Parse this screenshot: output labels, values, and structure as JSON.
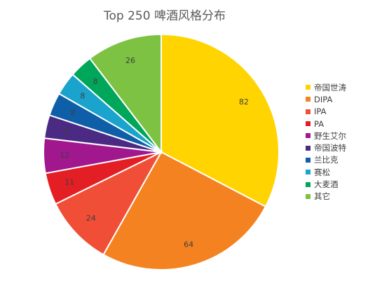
{
  "chart_data": {
    "type": "pie",
    "title": "Top 250 啤酒风格分布",
    "legend_position": "right",
    "slices": [
      {
        "label": "帝国世涛",
        "value": 82,
        "color": "#FFD400"
      },
      {
        "label": "DIPA",
        "value": 64,
        "color": "#F58220"
      },
      {
        "label": "IPA",
        "value": 24,
        "color": "#F04E37"
      },
      {
        "label": "PA",
        "value": 11,
        "color": "#E31E24"
      },
      {
        "label": "野生艾尔",
        "value": 12,
        "color": "#A0178E"
      },
      {
        "label": "帝国波特",
        "value": 8,
        "color": "#4A2A83"
      },
      {
        "label": "兰比克",
        "value": 8,
        "color": "#0E5EA8"
      },
      {
        "label": "赛松",
        "value": 8,
        "color": "#1AA3CC"
      },
      {
        "label": "大麦酒",
        "value": 8,
        "color": "#00A65A"
      },
      {
        "label": "其它",
        "value": 26,
        "color": "#7DC242"
      }
    ]
  }
}
